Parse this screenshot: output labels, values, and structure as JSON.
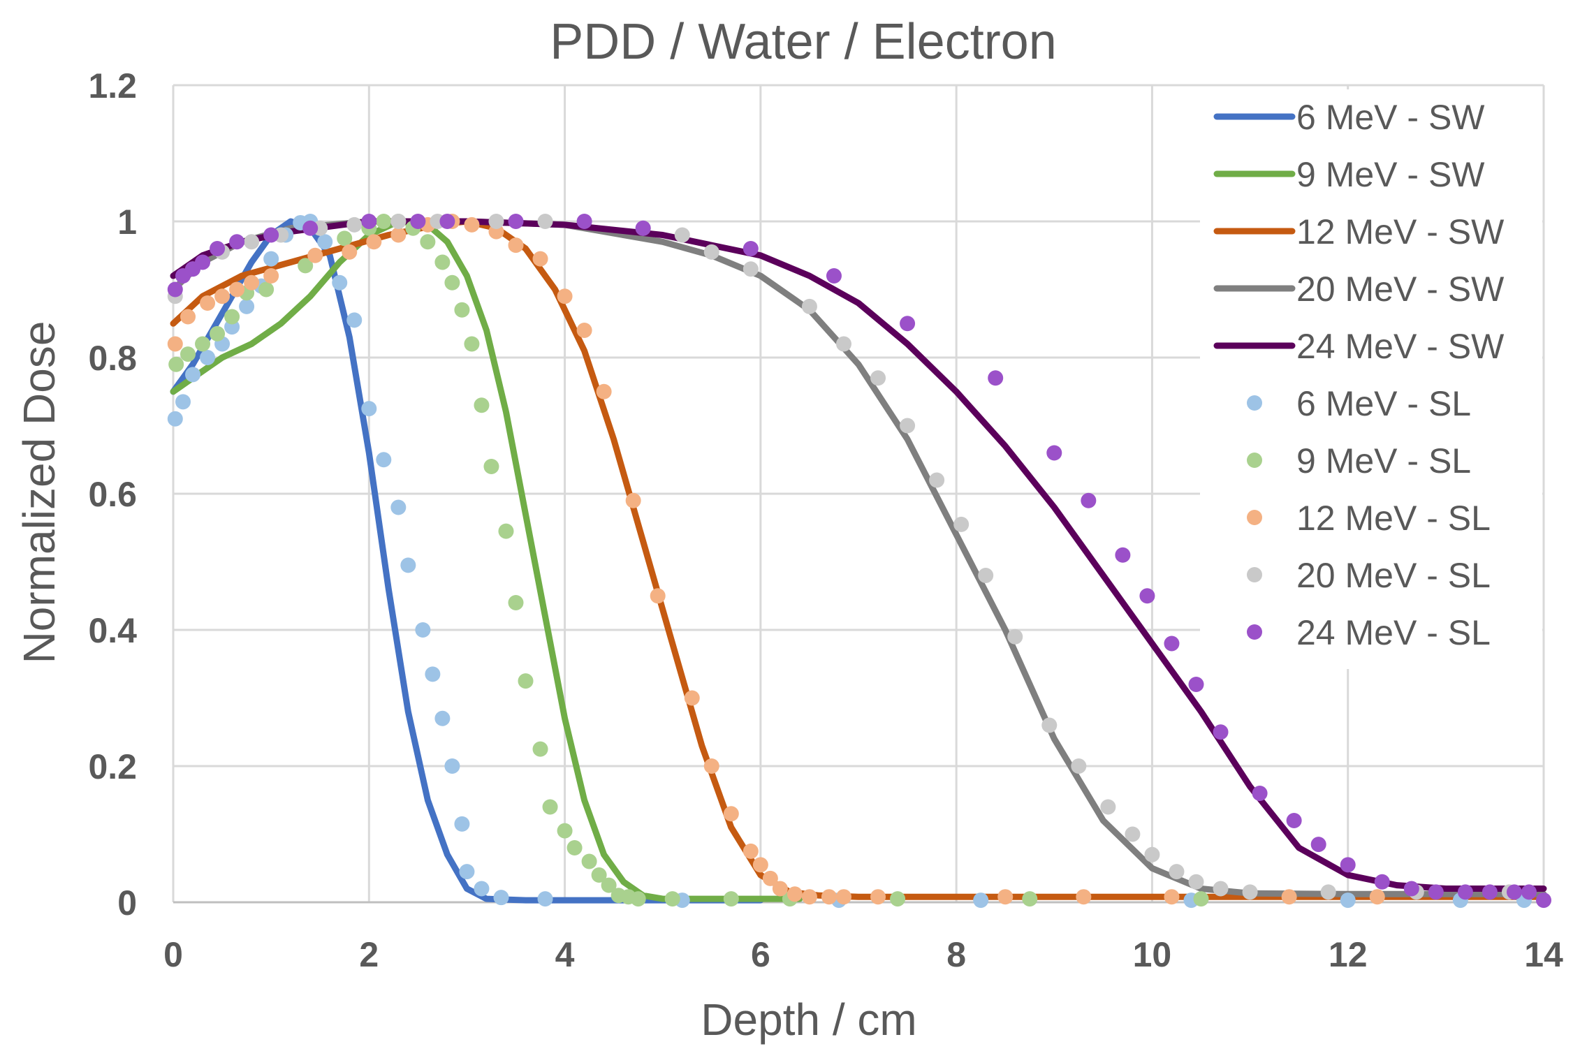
{
  "chart_data": {
    "type": "line",
    "title": "PDD  / Water / Electron",
    "xlabel": "Depth / cm",
    "ylabel": "Normalized Dose",
    "xlim": [
      0,
      14
    ],
    "ylim": [
      0,
      1.2
    ],
    "x_ticks": [
      "0",
      "2",
      "4",
      "6",
      "8",
      "10",
      "12",
      "14"
    ],
    "y_ticks": [
      "0",
      "0.2",
      "0.4",
      "0.6",
      "0.8",
      "1",
      "1.2"
    ],
    "grid": true,
    "legend_position": "right",
    "series": [
      {
        "name": "6 MeV - SW",
        "style": "line",
        "color": "#4472c4",
        "x": [
          0,
          0.2,
          0.4,
          0.6,
          0.8,
          1.0,
          1.2,
          1.4,
          1.6,
          1.8,
          2.0,
          2.2,
          2.4,
          2.6,
          2.8,
          3.0,
          3.2,
          3.6,
          4.0,
          6.0
        ],
        "y": [
          0.75,
          0.79,
          0.84,
          0.89,
          0.94,
          0.98,
          1.0,
          0.99,
          0.95,
          0.83,
          0.66,
          0.46,
          0.28,
          0.15,
          0.07,
          0.02,
          0.005,
          0.003,
          0.003,
          0.003
        ]
      },
      {
        "name": "9 MeV - SW",
        "style": "line",
        "color": "#70ad47",
        "x": [
          0,
          0.2,
          0.5,
          0.8,
          1.1,
          1.4,
          1.7,
          2.0,
          2.3,
          2.6,
          2.8,
          3.0,
          3.2,
          3.4,
          3.6,
          3.8,
          4.0,
          4.2,
          4.4,
          4.6,
          4.8,
          5.0,
          6.4
        ],
        "y": [
          0.75,
          0.77,
          0.8,
          0.82,
          0.85,
          0.89,
          0.94,
          0.98,
          1.0,
          0.995,
          0.97,
          0.92,
          0.84,
          0.72,
          0.57,
          0.42,
          0.27,
          0.15,
          0.07,
          0.03,
          0.01,
          0.005,
          0.005
        ]
      },
      {
        "name": "12 MeV - SW",
        "style": "line",
        "color": "#c55a11",
        "x": [
          0,
          0.3,
          0.7,
          1.2,
          1.7,
          2.2,
          2.7,
          3.0,
          3.3,
          3.6,
          3.9,
          4.2,
          4.5,
          4.8,
          5.1,
          5.4,
          5.7,
          6.0,
          6.3,
          6.6,
          7.0,
          14.0
        ],
        "y": [
          0.85,
          0.89,
          0.92,
          0.94,
          0.96,
          0.98,
          0.995,
          1.0,
          0.99,
          0.96,
          0.9,
          0.81,
          0.68,
          0.53,
          0.38,
          0.23,
          0.11,
          0.04,
          0.015,
          0.01,
          0.008,
          0.008
        ]
      },
      {
        "name": "20 MeV - SW",
        "style": "line",
        "color": "#7f7f7f",
        "x": [
          0,
          0.3,
          0.7,
          1.2,
          2.0,
          3.0,
          4.0,
          5.0,
          5.5,
          6.0,
          6.5,
          7.0,
          7.5,
          8.0,
          8.5,
          9.0,
          9.5,
          10.0,
          10.5,
          11.0,
          12.0,
          14.0
        ],
        "y": [
          0.9,
          0.94,
          0.97,
          0.99,
          1.0,
          1.0,
          0.995,
          0.97,
          0.95,
          0.92,
          0.87,
          0.79,
          0.68,
          0.54,
          0.4,
          0.24,
          0.12,
          0.05,
          0.02,
          0.013,
          0.012,
          0.012
        ]
      },
      {
        "name": "24 MeV - SW",
        "style": "line",
        "color": "#5b005b",
        "x": [
          0,
          0.3,
          0.7,
          1.2,
          2.0,
          3.0,
          4.0,
          5.0,
          6.0,
          6.5,
          7.0,
          7.5,
          8.0,
          8.5,
          9.0,
          9.5,
          10.0,
          10.5,
          11.0,
          11.5,
          12.0,
          12.5,
          13.0,
          14.0
        ],
        "y": [
          0.92,
          0.95,
          0.97,
          0.985,
          1.0,
          1.0,
          0.995,
          0.98,
          0.95,
          0.92,
          0.88,
          0.82,
          0.75,
          0.67,
          0.58,
          0.48,
          0.38,
          0.28,
          0.17,
          0.08,
          0.04,
          0.025,
          0.02,
          0.02
        ]
      },
      {
        "name": "6 MeV - SL",
        "style": "dots",
        "color": "#9dc3e6",
        "x": [
          0.02,
          0.1,
          0.2,
          0.35,
          0.5,
          0.6,
          0.75,
          0.9,
          1.0,
          1.15,
          1.3,
          1.4,
          1.55,
          1.7,
          1.85,
          2.0,
          2.15,
          2.3,
          2.4,
          2.55,
          2.65,
          2.75,
          2.85,
          2.95,
          3.0,
          3.15,
          3.35,
          3.8,
          5.2,
          6.8,
          8.25,
          10.4,
          12.0,
          13.15,
          13.8
        ],
        "y": [
          0.71,
          0.73,
          0.77,
          0.8,
          0.82,
          0.84,
          0.87,
          0.9,
          0.94,
          0.98,
          1.0,
          1.0,
          0.97,
          0.91,
          0.82,
          0.73,
          0.65,
          0.58,
          0.5,
          0.4,
          0.34,
          0.27,
          0.2,
          0.12,
          0.05,
          0.02,
          0.01,
          0.005,
          0.003,
          0.003,
          0.003,
          0.003,
          0.003,
          0.003,
          0.003
        ],
        "y_adj": [
          0.71,
          0.735,
          0.775,
          0.8,
          0.82,
          0.845,
          0.875,
          0.905,
          0.945,
          0.98,
          0.998,
          1.0,
          0.97,
          0.91,
          0.855,
          0.725,
          0.65,
          0.58,
          0.495,
          0.4,
          0.335,
          0.27,
          0.2,
          0.115,
          0.045,
          0.02,
          0.007,
          0.005,
          0.003,
          0.003,
          0.003,
          0.003,
          0.003,
          0.003,
          0.003
        ]
      },
      {
        "name": "9 MeV - SL",
        "style": "dots",
        "color": "#a9d18e",
        "x": [
          0.03,
          0.15,
          0.3,
          0.45,
          0.6,
          0.75,
          0.95,
          1.35,
          1.75,
          2.0,
          2.15,
          2.3,
          2.45,
          2.6,
          2.75,
          2.85,
          2.95,
          3.05,
          3.15,
          3.25,
          3.4,
          3.5,
          3.6,
          3.75,
          3.85,
          4.0,
          4.1,
          4.25,
          4.35,
          4.45,
          4.55,
          4.65,
          4.75,
          5.1,
          5.7,
          6.3,
          7.4,
          8.75,
          10.5
        ],
        "y": [
          0.79,
          0.8,
          0.82,
          0.84,
          0.86,
          0.88,
          0.9,
          0.935,
          0.975,
          0.99,
          1.0,
          1.0,
          0.99,
          0.97,
          0.94,
          0.91,
          0.87,
          0.82,
          0.73,
          0.64,
          0.55,
          0.44,
          0.32,
          0.22,
          0.14,
          0.1,
          0.08,
          0.06,
          0.04,
          0.02,
          0.01,
          0.008,
          0.005,
          0.005,
          0.005,
          0.005,
          0.005,
          0.005,
          0.005
        ],
        "y_adj": [
          0.79,
          0.805,
          0.82,
          0.835,
          0.86,
          0.895,
          0.9,
          0.935,
          0.975,
          0.99,
          1.0,
          1.0,
          0.99,
          0.97,
          0.94,
          0.91,
          0.87,
          0.82,
          0.73,
          0.64,
          0.545,
          0.44,
          0.325,
          0.225,
          0.14,
          0.105,
          0.08,
          0.06,
          0.04,
          0.025,
          0.01,
          0.008,
          0.005,
          0.005,
          0.005,
          0.005,
          0.005,
          0.005,
          0.005
        ]
      },
      {
        "name": "12 MeV - SL",
        "style": "dots",
        "color": "#f4b183",
        "x": [
          0.02,
          0.15,
          0.35,
          0.5,
          0.65,
          0.8,
          1.0,
          1.45,
          1.8,
          2.05,
          2.3,
          2.6,
          2.85,
          3.05,
          3.3,
          3.5,
          3.75,
          4.0,
          4.2,
          4.4,
          4.7,
          4.95,
          5.3,
          5.5,
          5.7,
          5.9,
          6.0,
          6.1,
          6.2,
          6.35,
          6.5,
          6.7,
          6.85,
          7.2,
          8.5,
          9.3,
          10.2,
          11.4,
          12.3
        ],
        "y": [
          0.82,
          0.86,
          0.88,
          0.89,
          0.9,
          0.91,
          0.92,
          0.95,
          0.96,
          0.97,
          0.98,
          0.99,
          1.0,
          1.0,
          0.99,
          0.97,
          0.95,
          0.89,
          0.84,
          0.75,
          0.59,
          0.45,
          0.3,
          0.2,
          0.13,
          0.07,
          0.05,
          0.03,
          0.02,
          0.01,
          0.008,
          0.008,
          0.008,
          0.008,
          0.008,
          0.008,
          0.008,
          0.008,
          0.008
        ],
        "y_adj": [
          0.82,
          0.86,
          0.88,
          0.89,
          0.9,
          0.91,
          0.92,
          0.95,
          0.955,
          0.97,
          0.98,
          0.995,
          1.0,
          0.995,
          0.985,
          0.965,
          0.945,
          0.89,
          0.84,
          0.75,
          0.59,
          0.45,
          0.3,
          0.2,
          0.13,
          0.075,
          0.055,
          0.035,
          0.02,
          0.012,
          0.008,
          0.008,
          0.008,
          0.008,
          0.008,
          0.008,
          0.008,
          0.008,
          0.008
        ]
      },
      {
        "name": "20 MeV - SL",
        "style": "dots",
        "color": "#c9c9c9",
        "x": [
          0.02,
          0.2,
          0.5,
          0.8,
          1.1,
          1.5,
          1.85,
          2.3,
          2.7,
          3.3,
          3.8,
          4.8,
          5.2,
          5.5,
          5.9,
          6.5,
          6.85,
          7.2,
          7.5,
          7.8,
          8.05,
          8.3,
          8.6,
          8.95,
          9.25,
          9.55,
          9.8,
          10.0,
          10.25,
          10.45,
          10.7,
          11.0,
          11.8,
          12.7,
          13.65
        ],
        "y": [
          0.89,
          0.93,
          0.955,
          0.97,
          0.98,
          0.99,
          0.995,
          1.0,
          1.0,
          1.0,
          1.0,
          0.99,
          0.98,
          0.955,
          0.93,
          0.875,
          0.82,
          0.77,
          0.7,
          0.62,
          0.555,
          0.48,
          0.39,
          0.26,
          0.2,
          0.14,
          0.1,
          0.07,
          0.045,
          0.03,
          0.02,
          0.015,
          0.015,
          0.015,
          0.015
        ]
      },
      {
        "name": "24 MeV - SL",
        "style": "dots",
        "color": "#9b51c9",
        "x": [
          0.02,
          0.1,
          0.2,
          0.3,
          0.45,
          0.65,
          1.0,
          1.4,
          2.0,
          2.5,
          2.8,
          3.5,
          4.2,
          4.8,
          5.9,
          6.75,
          7.5,
          8.4,
          9.0,
          9.35,
          9.7,
          9.95,
          10.2,
          10.45,
          10.7,
          11.1,
          11.45,
          11.7,
          12.0,
          12.35,
          12.65,
          12.9,
          13.2,
          13.45,
          13.7,
          13.85,
          14.0
        ],
        "y": [
          0.9,
          0.92,
          0.93,
          0.94,
          0.96,
          0.97,
          0.98,
          0.99,
          1.0,
          1.0,
          1.0,
          1.0,
          1.0,
          0.99,
          0.96,
          0.92,
          0.85,
          0.77,
          0.66,
          0.59,
          0.51,
          0.45,
          0.38,
          0.32,
          0.25,
          0.16,
          0.12,
          0.085,
          0.055,
          0.03,
          0.02,
          0.015,
          0.015,
          0.015,
          0.015,
          0.015,
          0.003
        ]
      }
    ]
  }
}
